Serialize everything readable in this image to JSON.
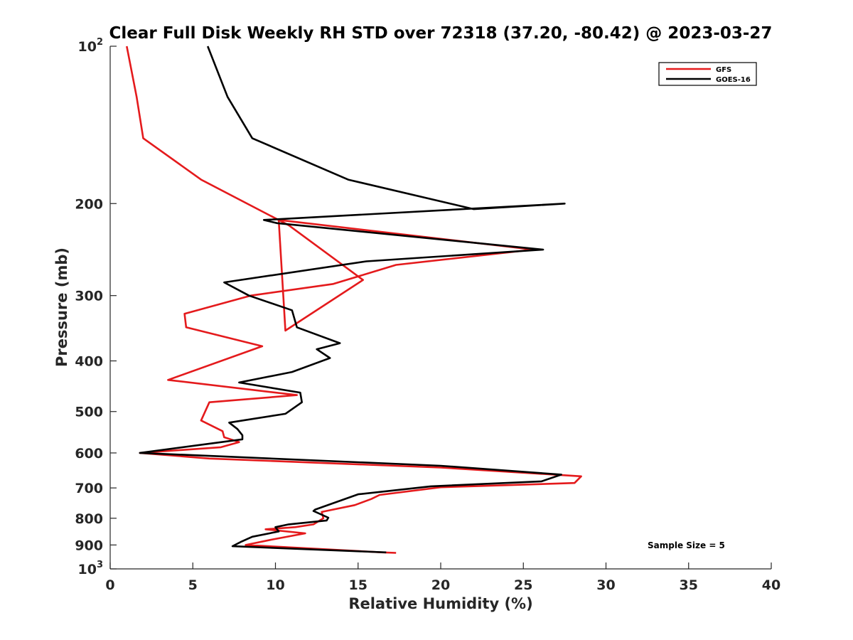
{
  "chart_data": {
    "type": "line",
    "title": "Clear Full Disk Weekly RH STD over 72318 (37.20, -80.42) @ 2023-03-27",
    "xlabel": "Relative Humidity (%)",
    "ylabel": "Pressure (mb)",
    "xlim": [
      0,
      40
    ],
    "ylim": [
      100,
      1000
    ],
    "y_scale": "log",
    "y_reversed": true,
    "x_ticks": [
      "0",
      "5",
      "10",
      "15",
      "20",
      "25",
      "30",
      "35",
      "40"
    ],
    "y_ticks": [
      {
        "base": "10",
        "exp": "2",
        "value": 100
      },
      {
        "label": "200",
        "value": 200
      },
      {
        "label": "300",
        "value": 300
      },
      {
        "label": "400",
        "value": 400
      },
      {
        "label": "500",
        "value": 500
      },
      {
        "label": "600",
        "value": 600
      },
      {
        "label": "700",
        "value": 700
      },
      {
        "label": "800",
        "value": 800
      },
      {
        "label": "900",
        "value": 900
      },
      {
        "base": "10",
        "exp": "3",
        "value": 1000
      }
    ],
    "grid": false,
    "legend_position": "top-right",
    "annotation": "Sample Size = 5",
    "series": [
      {
        "name": "GFS",
        "color": "#e41a1c",
        "points": [
          [
            1.0,
            100
          ],
          [
            1.6,
            125
          ],
          [
            2.0,
            150
          ],
          [
            5.5,
            180
          ],
          [
            10.8,
            220
          ],
          [
            15.3,
            280
          ],
          [
            10.6,
            350
          ],
          [
            10.2,
            215
          ],
          [
            25.6,
            245
          ],
          [
            17.3,
            262
          ],
          [
            13.5,
            285
          ],
          [
            8.5,
            300
          ],
          [
            4.5,
            325
          ],
          [
            4.6,
            345
          ],
          [
            9.2,
            375
          ],
          [
            3.5,
            435
          ],
          [
            11.3,
            465
          ],
          [
            6.0,
            480
          ],
          [
            5.5,
            520
          ],
          [
            6.8,
            545
          ],
          [
            6.9,
            560
          ],
          [
            7.8,
            572
          ],
          [
            6.7,
            585
          ],
          [
            1.8,
            600
          ],
          [
            6.0,
            615
          ],
          [
            20.0,
            640
          ],
          [
            28.5,
            665
          ],
          [
            28.1,
            685
          ],
          [
            20.0,
            698
          ],
          [
            16.3,
            722
          ],
          [
            15.8,
            735
          ],
          [
            14.8,
            755
          ],
          [
            12.8,
            778
          ],
          [
            12.9,
            800
          ],
          [
            12.3,
            822
          ],
          [
            11.2,
            832
          ],
          [
            9.4,
            840
          ],
          [
            11.8,
            855
          ],
          [
            9.7,
            880
          ],
          [
            8.2,
            900
          ],
          [
            16.5,
            930
          ],
          [
            17.3,
            932
          ]
        ]
      },
      {
        "name": "GOES-16",
        "color": "#000000",
        "points": [
          [
            5.9,
            100
          ],
          [
            7.1,
            125
          ],
          [
            8.6,
            150
          ],
          [
            14.4,
            180
          ],
          [
            22.0,
            205
          ],
          [
            27.5,
            200
          ],
          [
            9.3,
            215
          ],
          [
            10.1,
            218
          ],
          [
            26.2,
            245
          ],
          [
            15.5,
            258
          ],
          [
            6.9,
            283
          ],
          [
            8.4,
            300
          ],
          [
            11.0,
            320
          ],
          [
            11.3,
            345
          ],
          [
            13.9,
            370
          ],
          [
            12.5,
            380
          ],
          [
            13.3,
            395
          ],
          [
            11.0,
            420
          ],
          [
            7.8,
            440
          ],
          [
            11.5,
            460
          ],
          [
            11.6,
            480
          ],
          [
            10.6,
            505
          ],
          [
            7.2,
            525
          ],
          [
            7.7,
            540
          ],
          [
            8.0,
            555
          ],
          [
            8.0,
            565
          ],
          [
            1.8,
            600
          ],
          [
            20.0,
            635
          ],
          [
            27.3,
            660
          ],
          [
            26.1,
            680
          ],
          [
            19.4,
            695
          ],
          [
            15.0,
            720
          ],
          [
            12.4,
            770
          ],
          [
            12.3,
            775
          ],
          [
            13.2,
            798
          ],
          [
            13.1,
            808
          ],
          [
            10.8,
            822
          ],
          [
            10.0,
            832
          ],
          [
            10.2,
            848
          ],
          [
            8.6,
            868
          ],
          [
            7.9,
            888
          ],
          [
            7.4,
            905
          ],
          [
            16.7,
            930
          ]
        ]
      }
    ]
  }
}
